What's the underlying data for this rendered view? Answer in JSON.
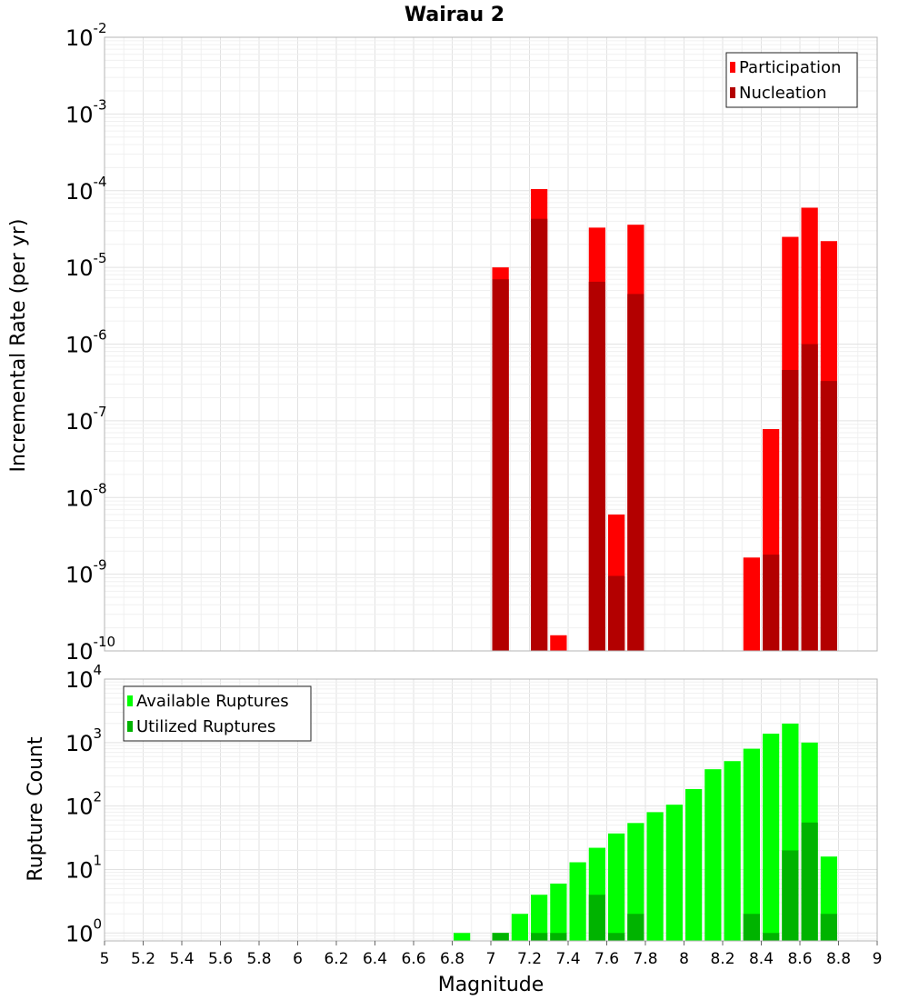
{
  "title": "Wairau 2",
  "chart_data": [
    {
      "type": "bar",
      "ylabel": "Incremental Rate (per yr)",
      "xlabel": "",
      "yscale": "log",
      "ylim": [
        1e-10,
        0.01
      ],
      "xlim": [
        5,
        9
      ],
      "bin_width": 0.1,
      "grid": true,
      "legend_position": "top-right",
      "series": [
        {
          "name": "Participation",
          "color": "#ff0000",
          "points": [
            {
              "x": 7.05,
              "y": 1e-05
            },
            {
              "x": 7.25,
              "y": 0.000105
            },
            {
              "x": 7.35,
              "y": 1.6e-10
            },
            {
              "x": 7.55,
              "y": 3.3e-05
            },
            {
              "x": 7.65,
              "y": 6e-09
            },
            {
              "x": 7.75,
              "y": 3.6e-05
            },
            {
              "x": 8.35,
              "y": 1.65e-09
            },
            {
              "x": 8.45,
              "y": 7.8e-08
            },
            {
              "x": 8.55,
              "y": 2.5e-05
            },
            {
              "x": 8.65,
              "y": 6e-05
            },
            {
              "x": 8.75,
              "y": 2.2e-05
            }
          ]
        },
        {
          "name": "Nucleation",
          "color": "#b30000",
          "points": [
            {
              "x": 7.05,
              "y": 7e-06
            },
            {
              "x": 7.25,
              "y": 4.3e-05
            },
            {
              "x": 7.55,
              "y": 6.5e-06
            },
            {
              "x": 7.65,
              "y": 9.5e-10
            },
            {
              "x": 7.75,
              "y": 4.5e-06
            },
            {
              "x": 8.45,
              "y": 1.8e-09
            },
            {
              "x": 8.55,
              "y": 4.6e-07
            },
            {
              "x": 8.65,
              "y": 1e-06
            },
            {
              "x": 8.75,
              "y": 3.3e-07
            }
          ]
        }
      ]
    },
    {
      "type": "bar",
      "ylabel": "Rupture Count",
      "xlabel": "Magnitude",
      "yscale": "log",
      "ylim": [
        0.75,
        10000
      ],
      "xlim": [
        5,
        9
      ],
      "bin_width": 0.1,
      "grid": true,
      "legend_position": "top-left",
      "x_ticks": [
        "5",
        "5.2",
        "5.4",
        "5.6",
        "5.8",
        "6",
        "6.2",
        "6.4",
        "6.6",
        "6.8",
        "7",
        "7.2",
        "7.4",
        "7.6",
        "7.8",
        "8",
        "8.2",
        "8.4",
        "8.6",
        "8.8",
        "9"
      ],
      "series": [
        {
          "name": "Available Ruptures",
          "color": "#00ff00",
          "points": [
            {
              "x": 6.85,
              "y": 1
            },
            {
              "x": 7.05,
              "y": 1
            },
            {
              "x": 7.15,
              "y": 2
            },
            {
              "x": 7.25,
              "y": 4
            },
            {
              "x": 7.35,
              "y": 6
            },
            {
              "x": 7.45,
              "y": 13
            },
            {
              "x": 7.55,
              "y": 22
            },
            {
              "x": 7.65,
              "y": 37
            },
            {
              "x": 7.75,
              "y": 54
            },
            {
              "x": 7.85,
              "y": 80
            },
            {
              "x": 7.95,
              "y": 105
            },
            {
              "x": 8.05,
              "y": 185
            },
            {
              "x": 8.15,
              "y": 380
            },
            {
              "x": 8.25,
              "y": 510
            },
            {
              "x": 8.35,
              "y": 800
            },
            {
              "x": 8.45,
              "y": 1380
            },
            {
              "x": 8.55,
              "y": 1990
            },
            {
              "x": 8.65,
              "y": 1000
            },
            {
              "x": 8.75,
              "y": 16
            }
          ]
        },
        {
          "name": "Utilized Ruptures",
          "color": "#00b300",
          "points": [
            {
              "x": 7.05,
              "y": 1
            },
            {
              "x": 7.25,
              "y": 1
            },
            {
              "x": 7.35,
              "y": 1
            },
            {
              "x": 7.55,
              "y": 4
            },
            {
              "x": 7.65,
              "y": 1
            },
            {
              "x": 7.75,
              "y": 2
            },
            {
              "x": 8.35,
              "y": 2
            },
            {
              "x": 8.45,
              "y": 1
            },
            {
              "x": 8.55,
              "y": 20
            },
            {
              "x": 8.65,
              "y": 55
            },
            {
              "x": 8.75,
              "y": 2
            }
          ]
        }
      ]
    }
  ]
}
